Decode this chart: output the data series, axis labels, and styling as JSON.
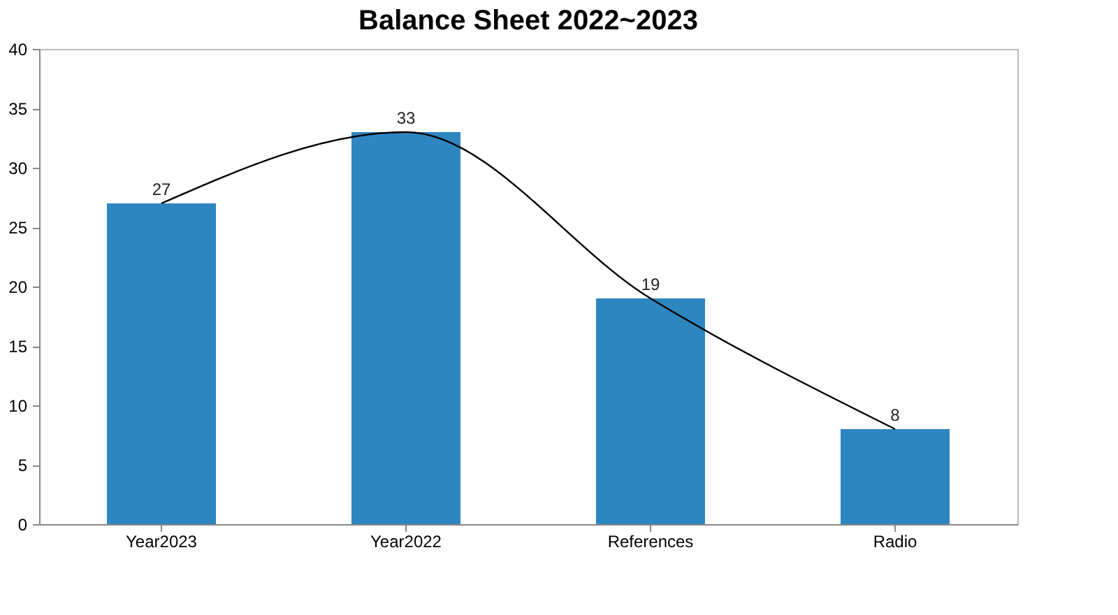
{
  "chart_data": {
    "type": "bar",
    "title": "Balance Sheet 2022~2023",
    "categories": [
      "Year2023",
      "Year2022",
      "References",
      "Radio"
    ],
    "series": [
      {
        "color": "#2e86c1",
        "values": [
          27,
          33,
          19,
          8
        ],
        "value_labels": [
          "27",
          "33",
          "19",
          "8"
        ]
      },
      {
        "type": "line",
        "color": "#000000",
        "values": [
          27,
          33,
          19,
          8
        ]
      }
    ],
    "ylim": [
      0,
      40
    ],
    "yticks": [
      0,
      5,
      10,
      15,
      20,
      25,
      30,
      35,
      40
    ],
    "marker": "none",
    "line_style": "solid",
    "grid": false
  }
}
